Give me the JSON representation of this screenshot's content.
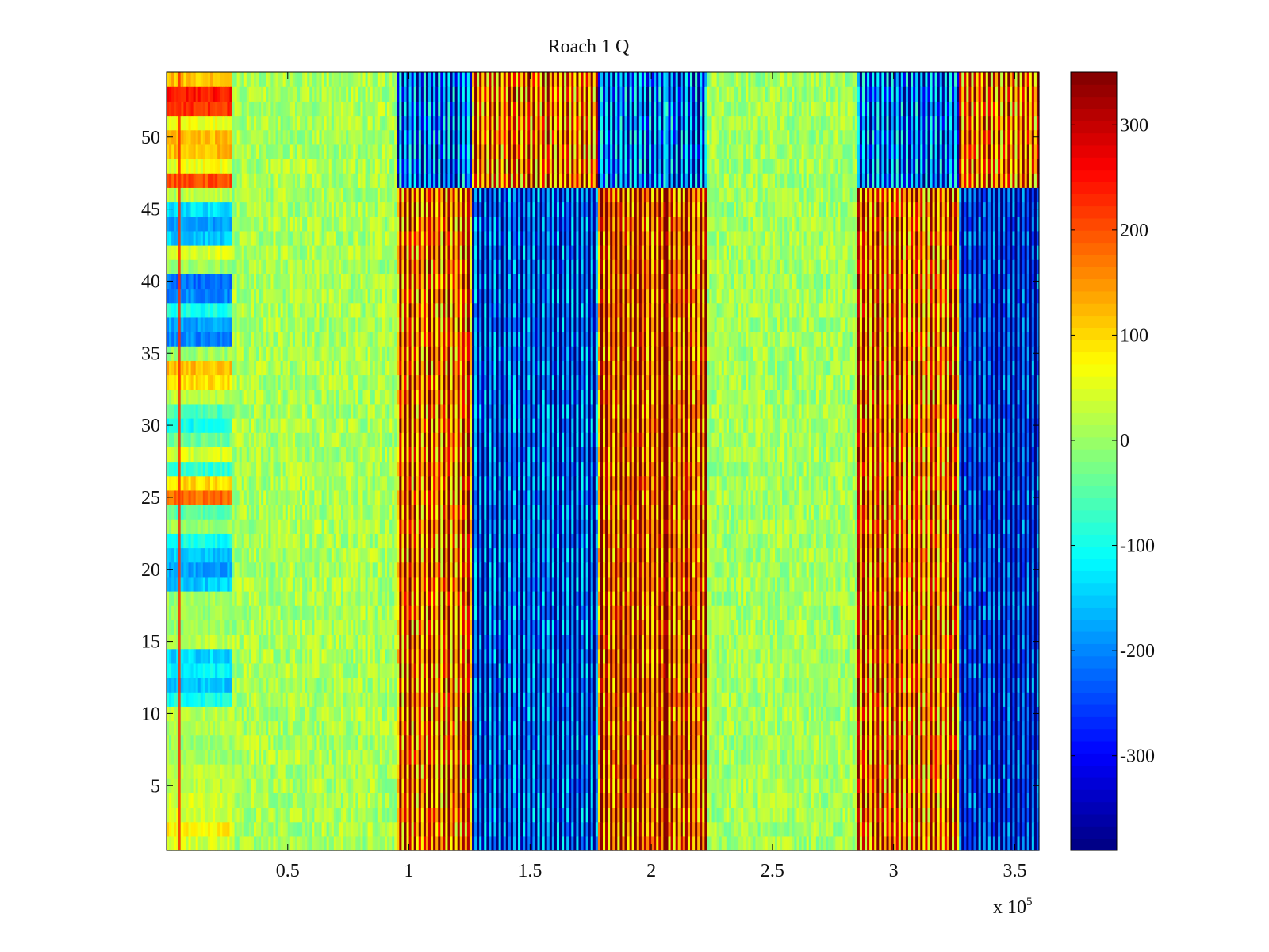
{
  "chart_data": {
    "type": "heatmap",
    "title": "Roach 1 Q",
    "xlabel": "",
    "ylabel": "",
    "x_exponent_label": "x 10",
    "x_exponent_value": "5",
    "xlim": [
      0.0,
      3.6
    ],
    "ylim": [
      0.5,
      54.5
    ],
    "x_ticks": [
      0.5,
      1,
      1.5,
      2,
      2.5,
      3,
      3.5
    ],
    "x_tick_labels": [
      "0.5",
      "1",
      "1.5",
      "2",
      "2.5",
      "3",
      "3.5"
    ],
    "y_ticks": [
      5,
      10,
      15,
      20,
      25,
      30,
      35,
      40,
      45,
      50
    ],
    "y_tick_labels": [
      "5",
      "10",
      "15",
      "20",
      "25",
      "30",
      "35",
      "40",
      "45",
      "50"
    ],
    "n_rows": 54,
    "colorbar": {
      "colormap": "jet",
      "min": -390,
      "max": 350,
      "ticks": [
        -300,
        -200,
        -100,
        0,
        100,
        200,
        300
      ],
      "tick_labels": [
        "-300",
        "-200",
        "-100",
        "0",
        "100",
        "200",
        "300"
      ]
    },
    "bands": [
      {
        "x_start": 0.0,
        "x_end": 0.27,
        "description": "mixed rows",
        "row_values": [
          40,
          80,
          40,
          40,
          20,
          20,
          0,
          0,
          20,
          20,
          -100,
          -150,
          -120,
          -140,
          20,
          0,
          0,
          0,
          -150,
          -180,
          -150,
          -100,
          0,
          -50,
          180,
          100,
          -80,
          40,
          -40,
          -100,
          -60,
          20,
          100,
          120,
          0,
          -200,
          -180,
          -100,
          -200,
          -220,
          0,
          40,
          -150,
          -180,
          -130,
          20,
          200,
          60,
          120,
          120,
          60,
          220,
          240,
          120
        ]
      },
      {
        "x_start": 0.27,
        "x_end": 0.95,
        "value_mean": 10
      },
      {
        "x_start": 0.95,
        "x_end": 1.26,
        "value_mean": 230,
        "alternating": true
      },
      {
        "x_start": 1.26,
        "x_end": 1.78,
        "value_mean": -260,
        "alternating": true
      },
      {
        "x_start": 1.78,
        "x_end": 2.23,
        "value_mean": 260,
        "alternating": true
      },
      {
        "x_start": 2.23,
        "x_end": 2.85,
        "value_mean": 5
      },
      {
        "x_start": 2.85,
        "x_end": 3.27,
        "value_mean": 230,
        "alternating": true
      },
      {
        "x_start": 3.27,
        "x_end": 3.6,
        "value_mean": -300,
        "alternating": true
      }
    ],
    "row_groups": [
      {
        "rows": [
          47,
          50
        ],
        "shift_in_blue_bands": "red",
        "shift_in_red_bands": "blue"
      },
      {
        "rows": [
          51,
          54
        ],
        "shift_in_red_bands": "blue",
        "shift_in_blue_bands": "red"
      }
    ]
  }
}
